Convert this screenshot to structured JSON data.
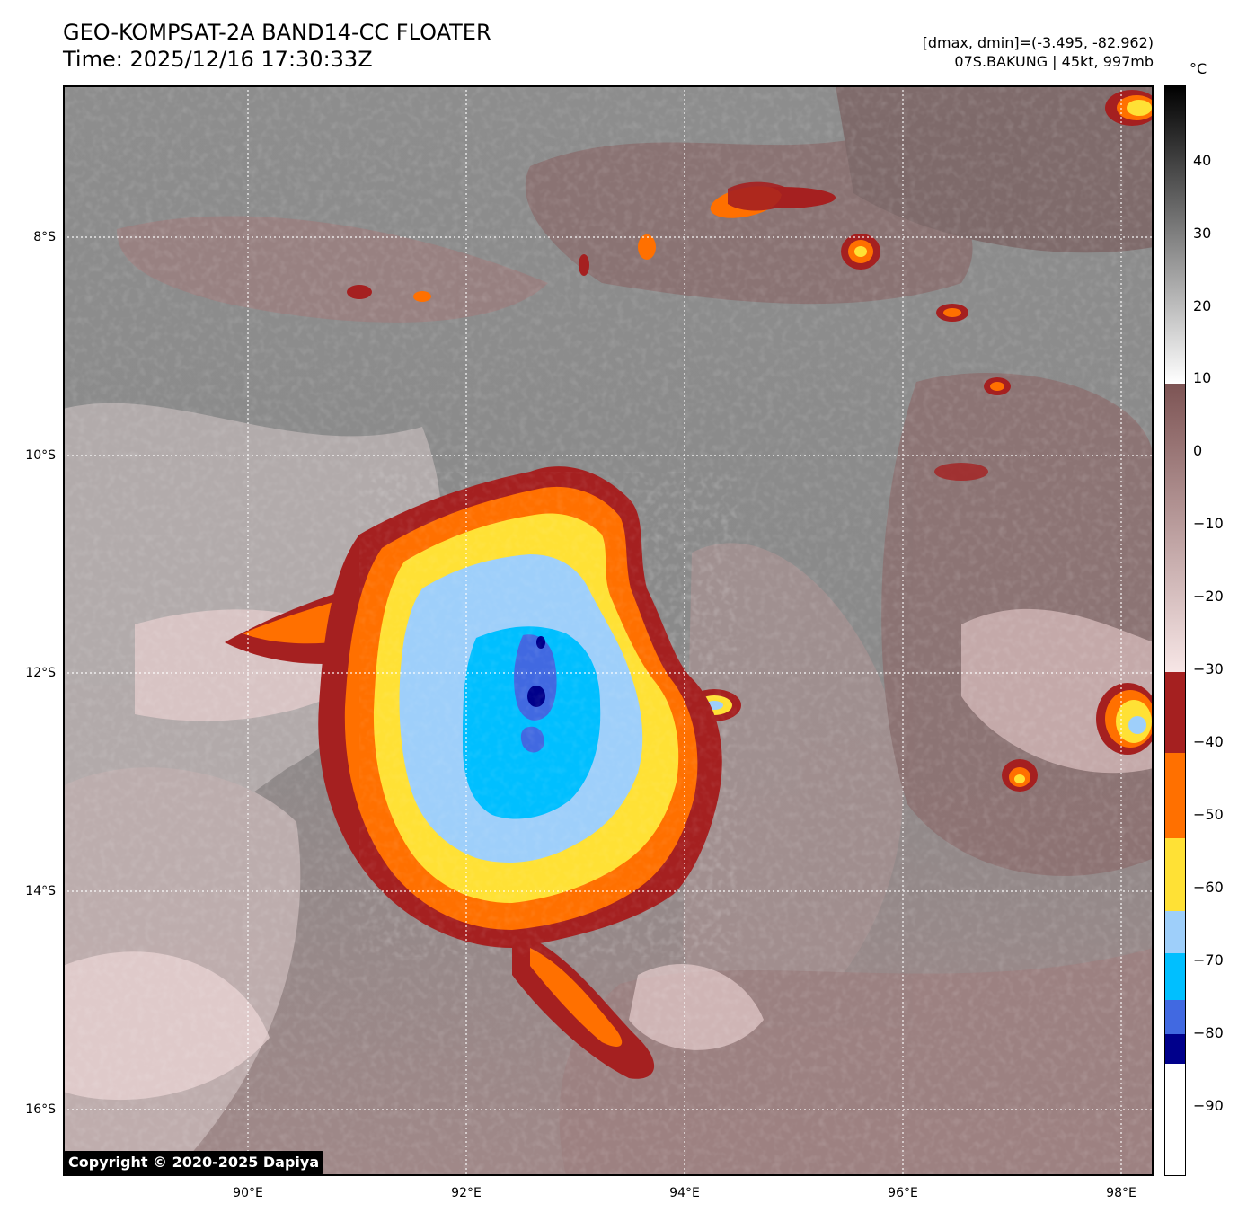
{
  "header": {
    "title_line1": "GEO-KOMPSAT-2A BAND14-CC FLOATER",
    "title_line2": "Time: 2025/12/16 17:30:33Z",
    "info_line1": "[dmax, dmin]=(-3.495, -82.962)",
    "info_line2": "07S.BAKUNG | 45kt, 997mb"
  },
  "map": {
    "lat_labels": [
      "8°S",
      "10°S",
      "12°S",
      "14°S",
      "16°S"
    ],
    "lon_labels": [
      "90°E",
      "92°E",
      "94°E",
      "96°E",
      "98°E"
    ],
    "gridlines": true
  },
  "colorbar": {
    "unit": "°C",
    "ticks": [
      "40",
      "30",
      "20",
      "10",
      "0",
      "−10",
      "−20",
      "−30",
      "−40",
      "−50",
      "−60",
      "−70",
      "−80",
      "−90"
    ],
    "range": [
      -100,
      50
    ],
    "palette": {
      "deep_blue": "#00008b",
      "royal_blue": "#4169e1",
      "sky_blue": "#00bfff",
      "light_blue": "#9ecffa",
      "yellow": "#ffe135",
      "orange": "#ff7000",
      "dark_red": "#a52020",
      "brown": "#8b5a5a",
      "pink": "#f0d8d8"
    }
  },
  "storm": {
    "name": "07S.BAKUNG"
  },
  "copyright": "Copyright © 2020-2025 Dapiya"
}
